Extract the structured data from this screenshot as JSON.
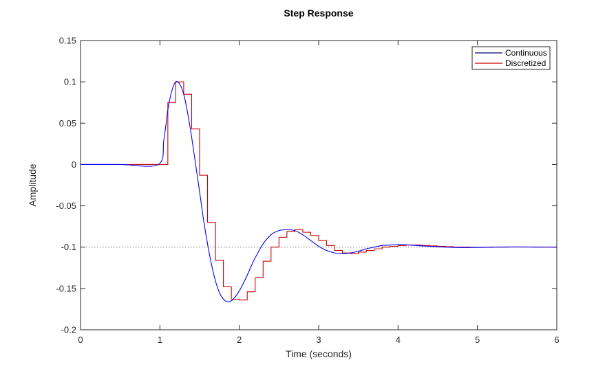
{
  "chart_data": {
    "type": "line",
    "title": "Step Response",
    "xlabel": "Time (seconds)",
    "ylabel": "Amplitude",
    "xlim": [
      0,
      6
    ],
    "ylim": [
      -0.2,
      0.15
    ],
    "xticks": [
      0,
      1,
      2,
      3,
      4,
      5,
      6
    ],
    "yticks": [
      0.15,
      0.1,
      0.05,
      0,
      -0.05,
      -0.1,
      -0.15,
      -0.2
    ],
    "xtick_labels": [
      "0",
      "1",
      "2",
      "3",
      "4",
      "5",
      "6"
    ],
    "ytick_labels": [
      "0.15",
      "0.1",
      "0.05",
      "0",
      "-0.05",
      "-0.1",
      "-0.15",
      "-0.2"
    ],
    "grid": false,
    "legend_position": "top-right",
    "steady_state": -0.1,
    "series": [
      {
        "name": "Continuous",
        "color": "#0000ff",
        "style": "line",
        "x": [
          0,
          0.5,
          0.98,
          1.05,
          1.1,
          1.15,
          1.2,
          1.25,
          1.3,
          1.35,
          1.4,
          1.45,
          1.5,
          1.55,
          1.6,
          1.65,
          1.7,
          1.75,
          1.8,
          1.85,
          1.9,
          1.95,
          2.0,
          2.05,
          2.1,
          2.15,
          2.2,
          2.3,
          2.4,
          2.5,
          2.6,
          2.7,
          2.8,
          2.9,
          3.0,
          3.1,
          3.2,
          3.3,
          3.4,
          3.5,
          3.6,
          3.7,
          3.8,
          3.9,
          4.0,
          4.1,
          4.2,
          4.3,
          4.4,
          4.5,
          4.6,
          4.8,
          5.0,
          5.2,
          5.4,
          5.6,
          5.8,
          6.0
        ],
        "y": [
          0,
          0,
          0,
          0.03,
          0.066,
          0.089,
          0.1,
          0.097,
          0.085,
          0.062,
          0.033,
          0.0,
          -0.033,
          -0.067,
          -0.096,
          -0.121,
          -0.141,
          -0.155,
          -0.163,
          -0.166,
          -0.165,
          -0.16,
          -0.153,
          -0.144,
          -0.134,
          -0.123,
          -0.113,
          -0.096,
          -0.085,
          -0.08,
          -0.079,
          -0.08,
          -0.085,
          -0.092,
          -0.099,
          -0.104,
          -0.107,
          -0.108,
          -0.107,
          -0.105,
          -0.102,
          -0.1,
          -0.098,
          -0.0975,
          -0.097,
          -0.0972,
          -0.0978,
          -0.0985,
          -0.099,
          -0.0996,
          -0.1,
          -0.1005,
          -0.1003,
          -0.1,
          -0.0998,
          -0.0998,
          -0.0999,
          -0.1
        ]
      },
      {
        "name": "Discretized",
        "color": "#cc0000",
        "style": "step",
        "x": [
          0,
          0.1,
          0.2,
          0.3,
          0.4,
          0.5,
          0.6,
          0.7,
          0.8,
          0.9,
          1.0,
          1.1,
          1.2,
          1.3,
          1.4,
          1.5,
          1.6,
          1.7,
          1.8,
          1.9,
          2.0,
          2.1,
          2.2,
          2.3,
          2.4,
          2.5,
          2.6,
          2.7,
          2.8,
          2.9,
          3.0,
          3.1,
          3.2,
          3.3,
          3.4,
          3.5,
          3.6,
          3.7,
          3.8,
          3.9,
          4.0,
          4.1,
          4.2,
          4.3,
          4.4,
          4.5,
          4.6,
          4.7,
          4.8,
          4.9,
          5.0,
          5.1,
          5.2,
          5.3,
          5.4,
          5.5,
          5.6,
          5.7,
          5.8,
          5.9,
          6.0
        ],
        "y": [
          0,
          0,
          0,
          0,
          0,
          0,
          0,
          0,
          0,
          0,
          0,
          0.075,
          0.1,
          0.085,
          0.043,
          -0.013,
          -0.07,
          -0.116,
          -0.148,
          -0.163,
          -0.164,
          -0.154,
          -0.137,
          -0.117,
          -0.1,
          -0.088,
          -0.081,
          -0.079,
          -0.082,
          -0.086,
          -0.092,
          -0.098,
          -0.104,
          -0.107,
          -0.108,
          -0.106,
          -0.104,
          -0.102,
          -0.1,
          -0.099,
          -0.098,
          -0.0975,
          -0.0975,
          -0.098,
          -0.0985,
          -0.099,
          -0.0995,
          -0.1,
          -0.1,
          -0.1003,
          -0.1003,
          -0.1002,
          -0.1,
          -0.1,
          -0.0999,
          -0.0999,
          -0.0999,
          -0.1,
          -0.1,
          -0.1,
          -0.1
        ]
      }
    ]
  }
}
